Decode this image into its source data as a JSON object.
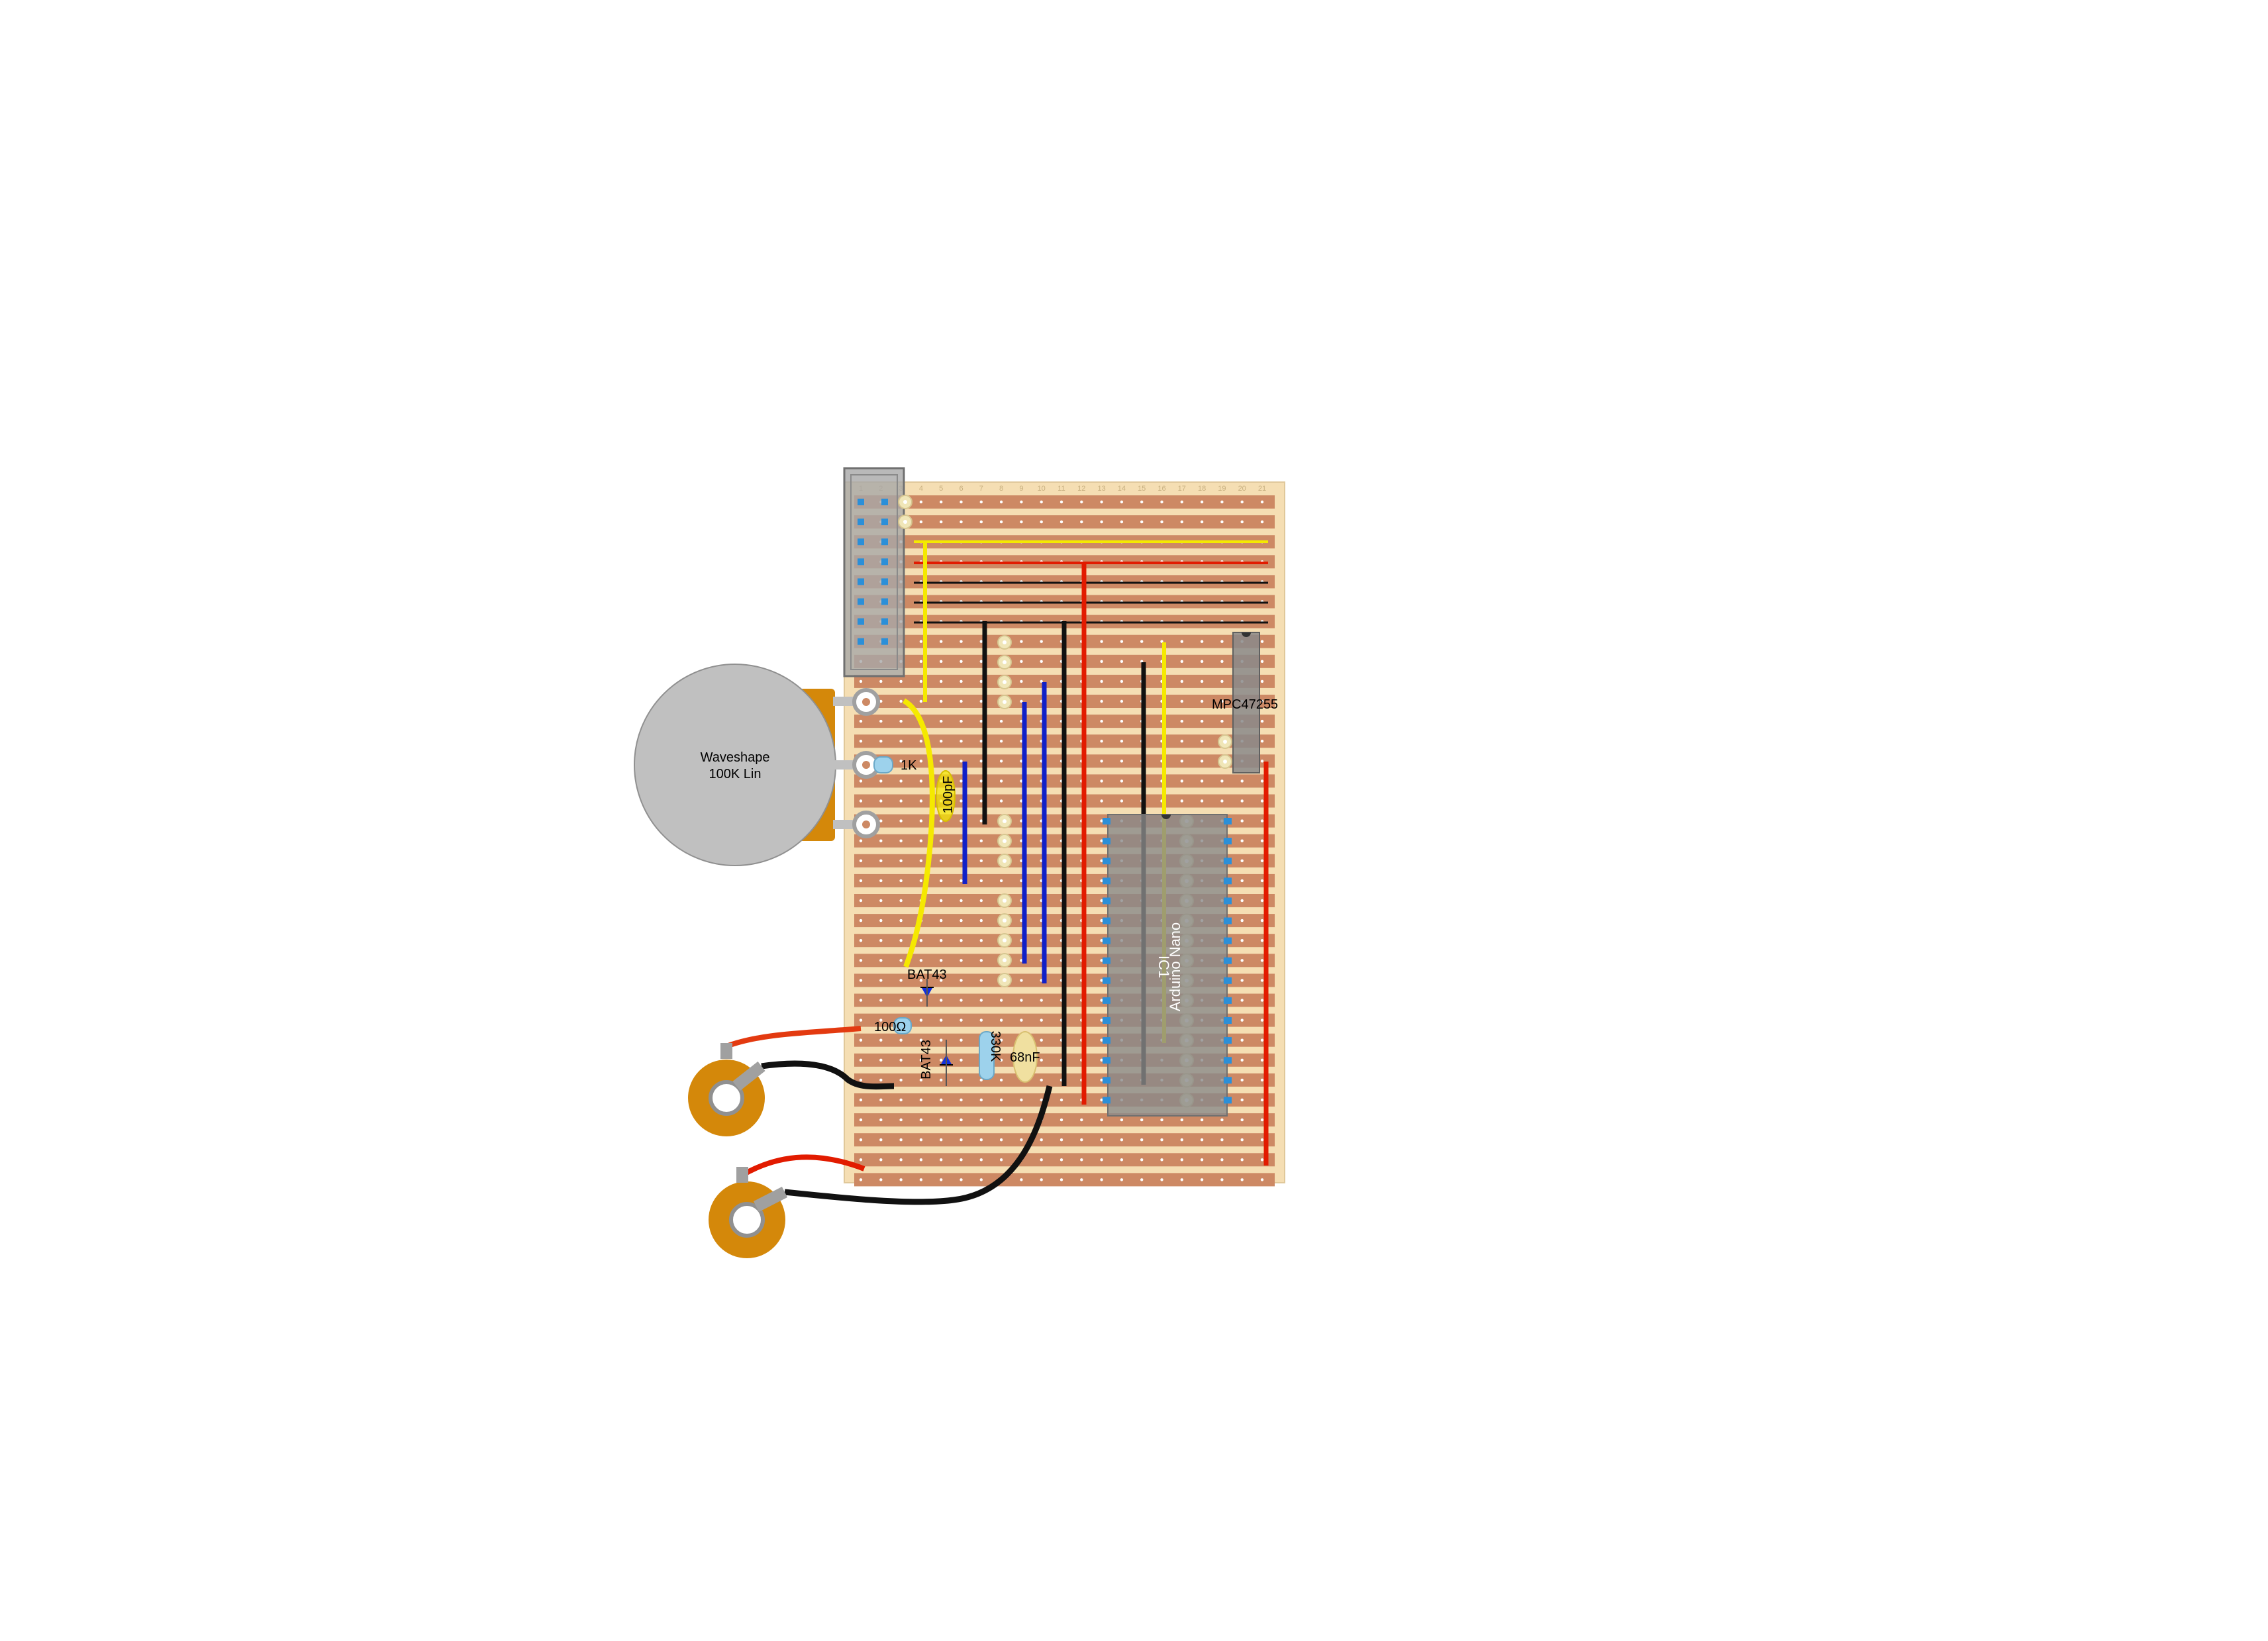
{
  "pot": {
    "title": "Waveshape",
    "subtitle": "100K Lin"
  },
  "header_label": "",
  "labels": {
    "r1": "1K",
    "c1": "100pF",
    "d1": "BAT43",
    "d2": "BAT43",
    "r2": "100Ω",
    "r3": "330K",
    "c2": "68nF",
    "ic_dac": "MPC47255",
    "ic_ref": "IC1",
    "ic_name": "Arduino Nano"
  },
  "colors": {
    "board": "#f5deb3",
    "strip": "#cd8964",
    "wire_yellow": "#f5e900",
    "wire_red": "#e21b00",
    "wire_black": "#111111",
    "wire_blue": "#1020c8",
    "pot_body": "#c0c0c0",
    "jack": "#d4880a",
    "diode": "#1030e0",
    "resistor": "#9dd2ec"
  },
  "column_numbers": [
    "1",
    "2",
    "3",
    "4",
    "5",
    "6",
    "7",
    "8",
    "9",
    "10",
    "11",
    "12",
    "13",
    "14",
    "15",
    "16",
    "17",
    "18",
    "19",
    "20",
    "21"
  ]
}
